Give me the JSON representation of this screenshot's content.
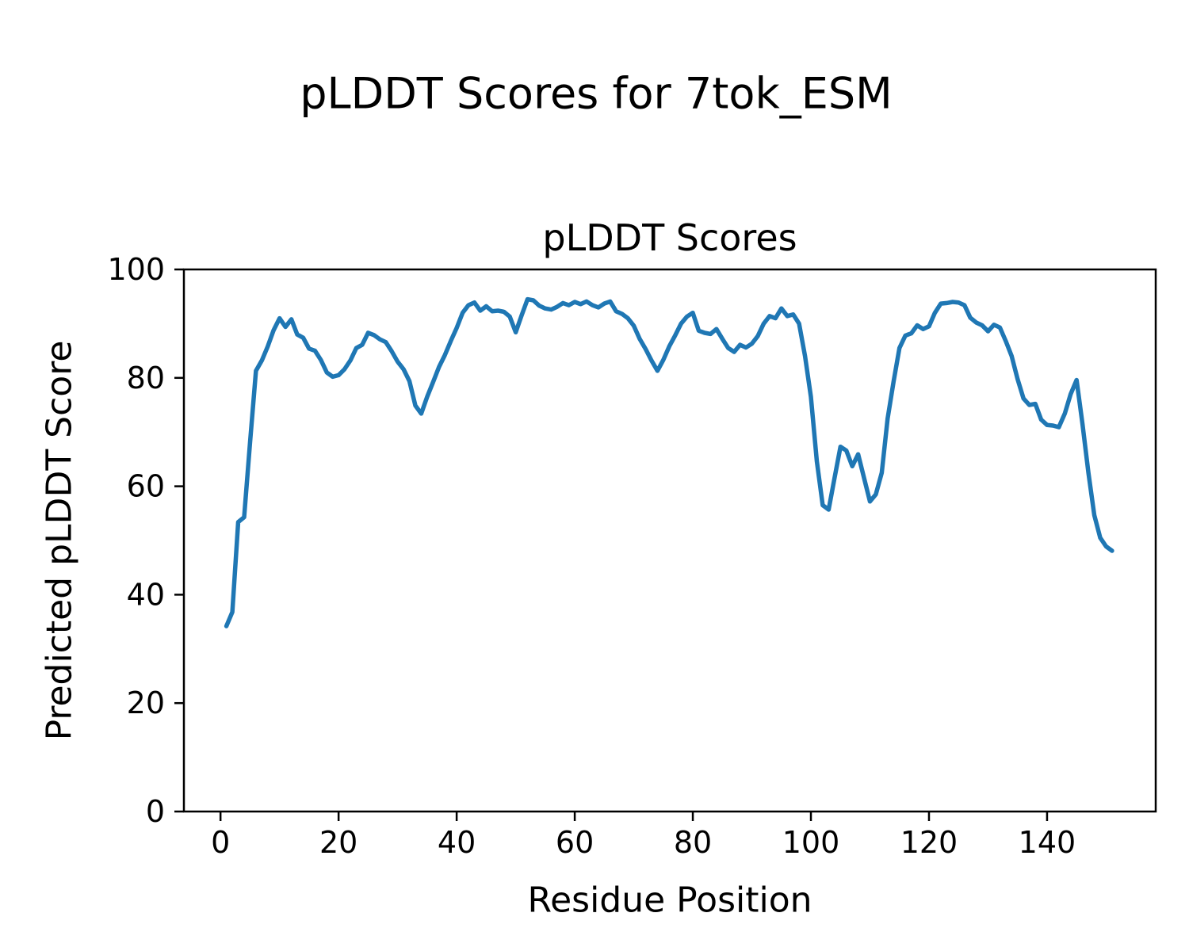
{
  "figure_title": "pLDDT Scores for 7tok_ESM",
  "chart_data": {
    "type": "line",
    "title": "pLDDT Scores",
    "xlabel": "Residue Position",
    "ylabel": "Predicted pLDDT Score",
    "x_tick_labels": [
      0,
      20,
      40,
      60,
      80,
      100,
      120,
      140
    ],
    "y_tick_labels": [
      0,
      20,
      40,
      60,
      80,
      100
    ],
    "xlim": [
      -6.2,
      158.4
    ],
    "ylim": [
      0,
      100
    ],
    "grid": false,
    "legend": "none",
    "line_color": "#1f77b4",
    "series": [
      {
        "name": "pLDDT",
        "x_start": 1,
        "x_step": 1,
        "values": [
          34.2,
          36.8,
          53.4,
          54.3,
          68.0,
          81.3,
          83.2,
          85.8,
          88.8,
          91.0,
          89.4,
          90.8,
          88.0,
          87.4,
          85.4,
          85.0,
          83.3,
          81.0,
          80.2,
          80.5,
          81.6,
          83.2,
          85.5,
          86.1,
          88.3,
          87.9,
          87.1,
          86.6,
          84.9,
          83.0,
          81.6,
          79.4,
          74.9,
          73.4,
          76.5,
          79.2,
          82.0,
          84.2,
          86.8,
          89.2,
          92.0,
          93.4,
          93.9,
          92.4,
          93.2,
          92.3,
          92.4,
          92.2,
          91.3,
          88.4,
          91.5,
          94.5,
          94.3,
          93.3,
          92.8,
          92.6,
          93.1,
          93.8,
          93.4,
          94.0,
          93.6,
          94.1,
          93.4,
          93.0,
          93.7,
          94.1,
          92.3,
          91.8,
          91.0,
          89.6,
          87.2,
          85.3,
          83.2,
          81.3,
          83.3,
          85.8,
          87.8,
          90.0,
          91.3,
          92.0,
          88.7,
          88.3,
          88.1,
          89.0,
          87.2,
          85.5,
          84.8,
          86.1,
          85.6,
          86.3,
          87.7,
          90.0,
          91.4,
          91.0,
          92.8,
          91.4,
          91.7,
          90.0,
          84.0,
          76.5,
          64.6,
          56.5,
          55.7,
          61.5,
          67.3,
          66.6,
          63.7,
          65.9,
          61.5,
          57.2,
          58.5,
          62.5,
          72.5,
          79.3,
          85.5,
          87.8,
          88.2,
          89.7,
          89.0,
          89.5,
          92.0,
          93.7,
          93.8,
          94.0,
          93.9,
          93.4,
          91.1,
          90.2,
          89.7,
          88.6,
          89.8,
          89.3,
          86.8,
          84.0,
          79.8,
          76.2,
          75.0,
          75.2,
          72.3,
          71.3,
          71.2,
          70.9,
          73.4,
          77.0,
          79.6,
          71.5,
          62.5,
          54.7,
          50.5,
          48.9,
          48.1
        ]
      }
    ]
  }
}
